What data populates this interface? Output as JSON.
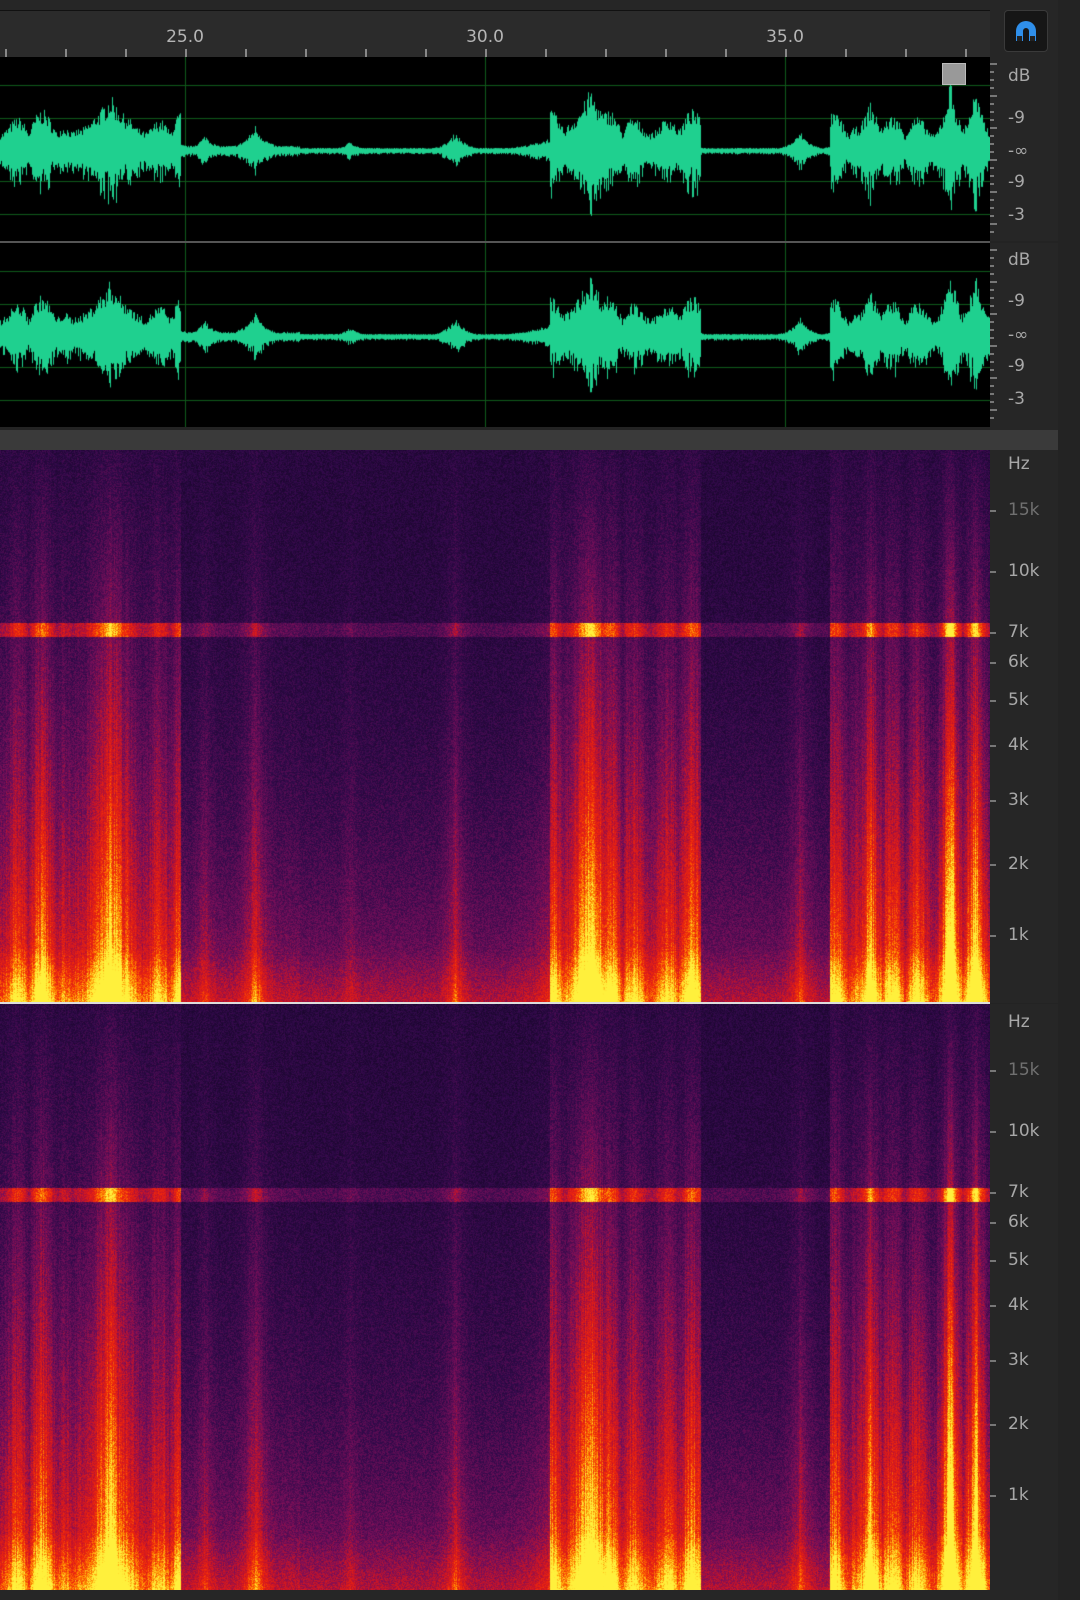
{
  "ruler": {
    "labels": [
      "25.0",
      "30.0",
      "35.0"
    ]
  },
  "snap_button": {
    "icon": "magnet-icon",
    "color": "#2f8fea"
  },
  "waveform": {
    "color": "#1fd08f",
    "grid_color": "#0f5a1a",
    "channels": [
      {
        "unit": "dB",
        "labels": [
          "-9",
          "-∞",
          "-9",
          "-3"
        ]
      },
      {
        "unit": "dB",
        "labels": [
          "-9",
          "-∞",
          "-9",
          "-3"
        ]
      }
    ]
  },
  "spectral": {
    "channels": [
      {
        "unit": "Hz",
        "labels": [
          "15k",
          "10k",
          "7k",
          "6k",
          "5k",
          "4k",
          "3k",
          "2k",
          "1k"
        ]
      },
      {
        "unit": "Hz",
        "labels": [
          "15k",
          "10k",
          "7k",
          "6k",
          "5k",
          "4k",
          "3k",
          "2k",
          "1k"
        ]
      }
    ]
  }
}
